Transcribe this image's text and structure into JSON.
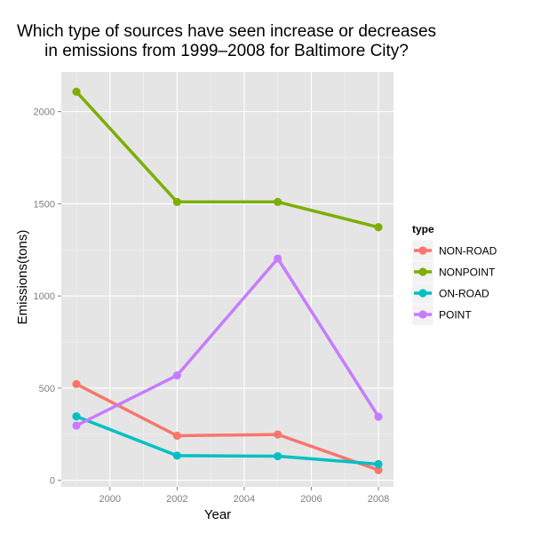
{
  "chart_data": {
    "type": "line",
    "title_line1": "Which type of sources have seen increase or decreases",
    "title_line2": "in emissions from 1999–2008 for Baltimore City?",
    "xlabel": "Year",
    "ylabel": "Emissions(tons)",
    "x": [
      1999,
      2002,
      2005,
      2008
    ],
    "xlim": [
      1998.55,
      2008.45
    ],
    "ylim": [
      -35,
      2215
    ],
    "xticks": [
      2000,
      2002,
      2004,
      2006,
      2008
    ],
    "xtick_labels": [
      "2000",
      "2002",
      "2004",
      "2006",
      "2008"
    ],
    "yticks": [
      0,
      500,
      1000,
      1500,
      2000
    ],
    "ytick_labels": [
      "0",
      "500",
      "1000",
      "1500",
      "2000"
    ],
    "grid": true,
    "legend_position": "right",
    "legend_title": "type",
    "series": [
      {
        "name": "NON-ROAD",
        "color": "#F8766D",
        "values": [
          522,
          242,
          249,
          56
        ]
      },
      {
        "name": "NONPOINT",
        "color": "#7CAE00",
        "values": [
          2108,
          1510,
          1510,
          1373
        ]
      },
      {
        "name": "ON-ROAD",
        "color": "#00BFC4",
        "values": [
          347,
          134,
          131,
          88
        ]
      },
      {
        "name": "POINT",
        "color": "#C77CFF",
        "values": [
          297,
          569,
          1203,
          345
        ]
      }
    ]
  }
}
